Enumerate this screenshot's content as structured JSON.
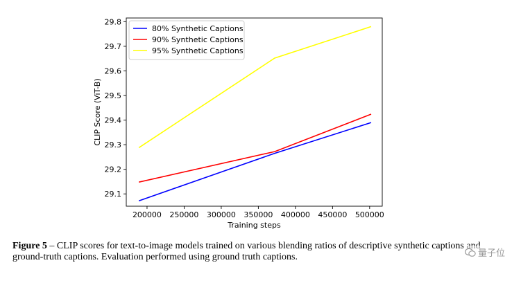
{
  "chart_data": {
    "type": "line",
    "xlabel": "Training steps",
    "ylabel": "CLIP Score (ViT-B)",
    "xlim": [
      172000,
      517000
    ],
    "ylim": [
      29.05,
      29.815
    ],
    "xticks": [
      200000,
      250000,
      300000,
      350000,
      400000,
      450000,
      500000
    ],
    "yticks": [
      29.1,
      29.2,
      29.3,
      29.4,
      29.5,
      29.6,
      29.7,
      29.8
    ],
    "legend_position": "top-left",
    "grid": false,
    "series": [
      {
        "name": "80% Synthetic Captions",
        "color": "#0000ff",
        "x": [
          189000,
          372000,
          502000
        ],
        "y": [
          29.072,
          29.265,
          29.39
        ]
      },
      {
        "name": "90% Synthetic Captions",
        "color": "#ff0000",
        "x": [
          189000,
          372000,
          502000
        ],
        "y": [
          29.148,
          29.272,
          29.424
        ]
      },
      {
        "name": "95% Synthetic Captions",
        "color": "#ffff00",
        "x": [
          189000,
          372000,
          502000
        ],
        "y": [
          29.288,
          29.652,
          29.78
        ]
      }
    ]
  },
  "caption": {
    "label": "Figure 5",
    "text": " – CLIP scores for text-to-image models trained on various blending ratios of descriptive synthetic captions and ground-truth captions. Evaluation performed using ground truth captions."
  },
  "watermark": {
    "text": "量子位",
    "icon": "wechat-icon"
  }
}
